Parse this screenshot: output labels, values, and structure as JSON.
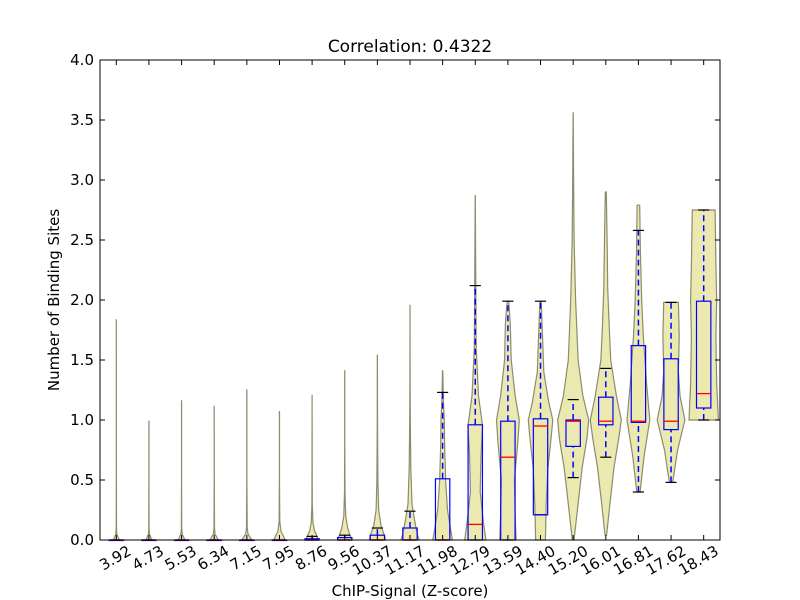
{
  "chart_data": {
    "type": "violin",
    "title": "Correlation: 0.4322",
    "xlabel": "ChIP-Signal (Z-score)",
    "ylabel": "Number of Binding Sites",
    "ylim": [
      0,
      4.0
    ],
    "y_ticks": [
      "0.0",
      "0.5",
      "1.0",
      "1.5",
      "2.0",
      "2.5",
      "3.0",
      "3.5",
      "4.0"
    ],
    "categories": [
      "3.92",
      "4.73",
      "5.53",
      "6.34",
      "7.15",
      "7.95",
      "8.76",
      "9.56",
      "10.37",
      "11.17",
      "11.98",
      "12.79",
      "13.59",
      "14.40",
      "15.20",
      "16.01",
      "16.81",
      "17.62",
      "18.43"
    ],
    "grid": false,
    "colors": {
      "violin_fill": "#ece9b0",
      "violin_edge": "#8c8c6e",
      "box": "#0000ff",
      "median": "#ff0000",
      "whisker": "#0000ff",
      "cap": "#000000"
    },
    "groups": [
      {
        "max": 1.84,
        "box": [
          0,
          0,
          0
        ],
        "whisker_high": 0,
        "violin": [
          [
            0,
            0.18
          ],
          [
            0.02,
            0.12
          ],
          [
            0.05,
            0.03
          ],
          [
            0.1,
            0.01
          ],
          [
            0.5,
            0.003
          ],
          [
            1.84,
            0.002
          ]
        ]
      },
      {
        "max": 0.99,
        "box": [
          0,
          0,
          0
        ],
        "whisker_high": 0,
        "violin": [
          [
            0,
            0.18
          ],
          [
            0.02,
            0.12
          ],
          [
            0.05,
            0.03
          ],
          [
            0.1,
            0.01
          ],
          [
            0.5,
            0.003
          ],
          [
            0.99,
            0.002
          ]
        ]
      },
      {
        "max": 1.16,
        "box": [
          0,
          0,
          0
        ],
        "whisker_high": 0,
        "violin": [
          [
            0,
            0.2
          ],
          [
            0.02,
            0.14
          ],
          [
            0.05,
            0.04
          ],
          [
            0.1,
            0.01
          ],
          [
            0.5,
            0.003
          ],
          [
            1.16,
            0.002
          ]
        ]
      },
      {
        "max": 1.12,
        "box": [
          0,
          0,
          0
        ],
        "whisker_high": 0,
        "violin": [
          [
            0,
            0.25
          ],
          [
            0.02,
            0.18
          ],
          [
            0.05,
            0.05
          ],
          [
            0.1,
            0.015
          ],
          [
            0.5,
            0.003
          ],
          [
            1.12,
            0.002
          ]
        ]
      },
      {
        "max": 1.25,
        "box": [
          0,
          0,
          0
        ],
        "whisker_high": 0,
        "violin": [
          [
            0,
            0.3
          ],
          [
            0.02,
            0.22
          ],
          [
            0.05,
            0.07
          ],
          [
            0.1,
            0.02
          ],
          [
            0.5,
            0.003
          ],
          [
            1.25,
            0.002
          ]
        ]
      },
      {
        "max": 1.07,
        "box": [
          0,
          0,
          0
        ],
        "whisker_high": 0,
        "violin": [
          [
            0,
            0.35
          ],
          [
            0.03,
            0.25
          ],
          [
            0.07,
            0.1
          ],
          [
            0.15,
            0.02
          ],
          [
            0.5,
            0.004
          ],
          [
            1.07,
            0.002
          ]
        ]
      },
      {
        "max": 1.21,
        "box": [
          0,
          0,
          0.01
        ],
        "whisker_high": 0.03,
        "violin": [
          [
            0,
            0.4
          ],
          [
            0.03,
            0.3
          ],
          [
            0.08,
            0.14
          ],
          [
            0.15,
            0.05
          ],
          [
            0.3,
            0.01
          ],
          [
            0.6,
            0.004
          ],
          [
            1.21,
            0.002
          ]
        ]
      },
      {
        "max": 1.41,
        "box": [
          0,
          0,
          0.02
        ],
        "whisker_high": 0.04,
        "violin": [
          [
            0,
            0.45
          ],
          [
            0.03,
            0.35
          ],
          [
            0.1,
            0.18
          ],
          [
            0.2,
            0.06
          ],
          [
            0.4,
            0.015
          ],
          [
            0.8,
            0.005
          ],
          [
            1.41,
            0.002
          ]
        ]
      },
      {
        "max": 1.54,
        "box": [
          0,
          0,
          0.04
        ],
        "whisker_high": 0.1,
        "violin": [
          [
            0,
            0.5
          ],
          [
            0.05,
            0.4
          ],
          [
            0.12,
            0.22
          ],
          [
            0.25,
            0.08
          ],
          [
            0.5,
            0.03
          ],
          [
            0.9,
            0.012
          ],
          [
            1.2,
            0.006
          ],
          [
            1.54,
            0.002
          ]
        ]
      },
      {
        "max": 1.96,
        "box": [
          0,
          0,
          0.1
        ],
        "whisker_high": 0.24,
        "violin": [
          [
            0,
            0.55
          ],
          [
            0.05,
            0.45
          ],
          [
            0.15,
            0.3
          ],
          [
            0.3,
            0.12
          ],
          [
            0.6,
            0.05
          ],
          [
            1.0,
            0.02
          ],
          [
            1.3,
            0.008
          ],
          [
            1.96,
            0.002
          ]
        ]
      },
      {
        "max": 1.41,
        "box": [
          0,
          0,
          0.51
        ],
        "whisker_high": 1.23,
        "violin": [
          [
            0,
            0.6
          ],
          [
            0.08,
            0.5
          ],
          [
            0.25,
            0.3
          ],
          [
            0.5,
            0.18
          ],
          [
            0.8,
            0.12
          ],
          [
            1.0,
            0.1
          ],
          [
            1.15,
            0.05
          ],
          [
            1.41,
            0.01
          ]
        ]
      },
      {
        "max": 2.87,
        "box": [
          0,
          0.13,
          0.96
        ],
        "whisker_high": 2.12,
        "violin": [
          [
            0,
            0.65
          ],
          [
            0.15,
            0.5
          ],
          [
            0.4,
            0.3
          ],
          [
            0.7,
            0.35
          ],
          [
            0.95,
            0.45
          ],
          [
            1.2,
            0.2
          ],
          [
            1.6,
            0.06
          ],
          [
            2.0,
            0.04
          ],
          [
            2.4,
            0.02
          ],
          [
            2.87,
            0.005
          ]
        ]
      },
      {
        "max": 1.99,
        "box": [
          0,
          0.69,
          0.99
        ],
        "whisker_high": 1.99,
        "violin": [
          [
            0,
            0.5
          ],
          [
            0.2,
            0.45
          ],
          [
            0.5,
            0.4
          ],
          [
            0.8,
            0.6
          ],
          [
            1.0,
            0.7
          ],
          [
            1.2,
            0.45
          ],
          [
            1.5,
            0.2
          ],
          [
            1.8,
            0.15
          ],
          [
            1.99,
            0.05
          ]
        ]
      },
      {
        "max": 1.99,
        "box": [
          0.21,
          0.95,
          1.01
        ],
        "whisker_high": 1.99,
        "violin": [
          [
            0,
            0.3
          ],
          [
            0.3,
            0.35
          ],
          [
            0.6,
            0.45
          ],
          [
            0.85,
            0.65
          ],
          [
            1.0,
            0.75
          ],
          [
            1.15,
            0.5
          ],
          [
            1.4,
            0.2
          ],
          [
            1.7,
            0.12
          ],
          [
            1.99,
            0.04
          ]
        ]
      },
      {
        "max": 3.56,
        "box": [
          0.78,
          0.99,
          1.0
        ],
        "whisker_high": 1.17,
        "whisker_low": 0.52,
        "violin": [
          [
            0,
            0.05
          ],
          [
            0.3,
            0.3
          ],
          [
            0.6,
            0.55
          ],
          [
            0.85,
            0.85
          ],
          [
            1.0,
            0.95
          ],
          [
            1.2,
            0.6
          ],
          [
            1.5,
            0.3
          ],
          [
            2.0,
            0.15
          ],
          [
            2.5,
            0.06
          ],
          [
            3.0,
            0.03
          ],
          [
            3.56,
            0.005
          ]
        ]
      },
      {
        "max": 2.9,
        "box": [
          0.96,
          0.99,
          1.19
        ],
        "whisker_high": 1.43,
        "whisker_low": 0.69,
        "violin": [
          [
            0.04,
            0.05
          ],
          [
            0.3,
            0.25
          ],
          [
            0.6,
            0.5
          ],
          [
            0.85,
            0.8
          ],
          [
            1.0,
            0.95
          ],
          [
            1.2,
            0.65
          ],
          [
            1.5,
            0.3
          ],
          [
            1.8,
            0.2
          ],
          [
            2.1,
            0.12
          ],
          [
            2.5,
            0.08
          ],
          [
            2.9,
            0.03
          ]
        ]
      },
      {
        "max": 2.79,
        "box": [
          0.98,
          0.99,
          1.62
        ],
        "whisker_high": 2.58,
        "whisker_low": 0.4,
        "violin": [
          [
            0.4,
            0.1
          ],
          [
            0.7,
            0.35
          ],
          [
            1.0,
            0.7
          ],
          [
            1.3,
            0.5
          ],
          [
            1.7,
            0.3
          ],
          [
            2.0,
            0.2
          ],
          [
            2.4,
            0.12
          ],
          [
            2.79,
            0.08
          ]
        ]
      },
      {
        "max": 1.98,
        "box": [
          0.92,
          0.99,
          1.51
        ],
        "whisker_high": 1.98,
        "whisker_low": 0.48,
        "violin": [
          [
            0.48,
            0.1
          ],
          [
            0.75,
            0.4
          ],
          [
            1.0,
            0.85
          ],
          [
            1.2,
            0.55
          ],
          [
            1.4,
            0.45
          ],
          [
            1.7,
            0.5
          ],
          [
            1.98,
            0.45
          ]
        ]
      },
      {
        "max": 2.75,
        "box": [
          1.1,
          1.22,
          1.99
        ],
        "whisker_high": 2.75,
        "whisker_low": 1.0,
        "violin": [
          [
            1.0,
            0.9
          ],
          [
            1.3,
            0.8
          ],
          [
            1.7,
            0.75
          ],
          [
            2.0,
            0.8
          ],
          [
            2.3,
            0.75
          ],
          [
            2.75,
            0.7
          ]
        ]
      }
    ]
  }
}
